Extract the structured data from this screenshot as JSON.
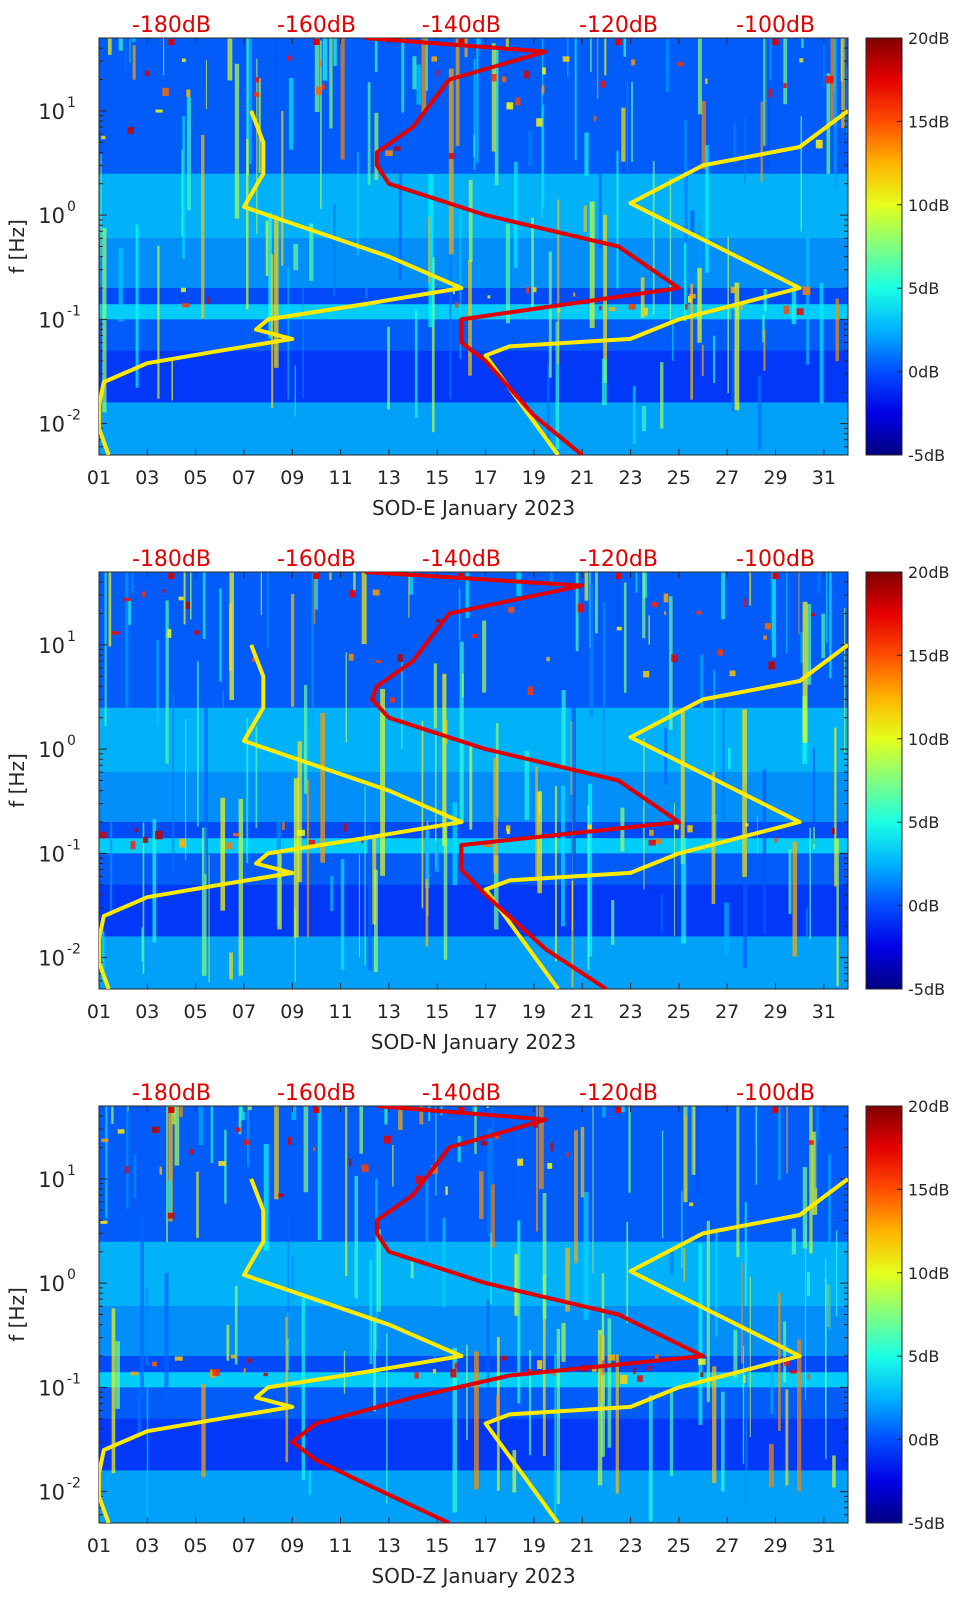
{
  "chart_data": [
    {
      "type": "heatmap",
      "title": "",
      "xlabel": "SOD-E January 2023",
      "ylabel": "f [Hz]",
      "x_ticks": [
        "01",
        "03",
        "05",
        "07",
        "09",
        "11",
        "13",
        "15",
        "17",
        "19",
        "21",
        "23",
        "25",
        "27",
        "29",
        "31"
      ],
      "xlim": [
        1,
        32
      ],
      "ylim": [
        0.005,
        50
      ],
      "y_scale": "log",
      "y_ticks": [
        {
          "value": 0.01,
          "base": "10",
          "exp": "-2"
        },
        {
          "value": 0.1,
          "base": "10",
          "exp": "-1"
        },
        {
          "value": 1,
          "base": "10",
          "exp": "0"
        },
        {
          "value": 10,
          "base": "10",
          "exp": "1"
        }
      ],
      "top_axis_labels": [
        "-180dB",
        "-160dB",
        "-140dB",
        "-120dB",
        "-100dB"
      ],
      "top_axis_days": [
        4,
        10,
        16,
        22.5,
        29
      ],
      "colorbar": {
        "labels": [
          "20dB",
          "15dB",
          "10dB",
          "5dB",
          "0dB",
          "-5dB"
        ],
        "values": [
          20,
          15,
          10,
          5,
          0,
          -5
        ],
        "range": [
          -5,
          20
        ]
      },
      "series": [
        {
          "name": "yellow-noise-model",
          "color": "#ffea00",
          "points": [
            [
              1.4,
              0.005
            ],
            [
              1.0,
              0.009
            ],
            [
              1.0,
              0.015
            ],
            [
              1.2,
              0.025
            ],
            [
              3,
              0.038
            ],
            [
              6,
              0.05
            ],
            [
              9,
              0.065
            ],
            [
              7.5,
              0.08
            ],
            [
              8,
              0.1
            ],
            [
              12,
              0.14
            ],
            [
              16,
              0.2
            ],
            [
              13,
              0.4
            ],
            [
              7,
              1.2
            ],
            [
              7.8,
              2.5
            ],
            [
              7.8,
              5
            ],
            [
              7.3,
              10
            ]
          ]
        },
        {
          "name": "yellow-noise-model-2",
          "color": "#ffea00",
          "points": [
            [
              20,
              0.005
            ],
            [
              17,
              0.045
            ],
            [
              18,
              0.055
            ],
            [
              23,
              0.065
            ],
            [
              25,
              0.1
            ],
            [
              30,
              0.2
            ],
            [
              23,
              1.3
            ],
            [
              26,
              3
            ],
            [
              30,
              4.5
            ],
            [
              32,
              10
            ]
          ]
        },
        {
          "name": "red-psd",
          "color": "#e00000",
          "points": [
            [
              21,
              0.005
            ],
            [
              19,
              0.012
            ],
            [
              17,
              0.04
            ],
            [
              16,
              0.06
            ],
            [
              16,
              0.1
            ],
            [
              25,
              0.2
            ],
            [
              22.5,
              0.5
            ],
            [
              17,
              1
            ],
            [
              13,
              2
            ],
            [
              12.5,
              3
            ],
            [
              12.5,
              4
            ],
            [
              14,
              7
            ],
            [
              15.5,
              20
            ],
            [
              19.5,
              37
            ],
            [
              12,
              50
            ]
          ]
        }
      ]
    },
    {
      "type": "heatmap",
      "title": "",
      "xlabel": "SOD-N January 2023",
      "ylabel": "f [Hz]",
      "x_ticks": [
        "01",
        "03",
        "05",
        "07",
        "09",
        "11",
        "13",
        "15",
        "17",
        "19",
        "21",
        "23",
        "25",
        "27",
        "29",
        "31"
      ],
      "xlim": [
        1,
        32
      ],
      "ylim": [
        0.005,
        50
      ],
      "y_scale": "log",
      "y_ticks": [
        {
          "value": 0.01,
          "base": "10",
          "exp": "-2"
        },
        {
          "value": 0.1,
          "base": "10",
          "exp": "-1"
        },
        {
          "value": 1,
          "base": "10",
          "exp": "0"
        },
        {
          "value": 10,
          "base": "10",
          "exp": "1"
        }
      ],
      "top_axis_labels": [
        "-180dB",
        "-160dB",
        "-140dB",
        "-120dB",
        "-100dB"
      ],
      "top_axis_days": [
        4,
        10,
        16,
        22.5,
        29
      ],
      "colorbar": {
        "labels": [
          "20dB",
          "15dB",
          "10dB",
          "5dB",
          "0dB",
          "-5dB"
        ],
        "values": [
          20,
          15,
          10,
          5,
          0,
          -5
        ],
        "range": [
          -5,
          20
        ]
      },
      "series": [
        {
          "name": "yellow-noise-model",
          "color": "#ffea00",
          "points": [
            [
              1.4,
              0.005
            ],
            [
              1.0,
              0.009
            ],
            [
              1.0,
              0.015
            ],
            [
              1.2,
              0.025
            ],
            [
              3,
              0.038
            ],
            [
              6,
              0.05
            ],
            [
              9,
              0.065
            ],
            [
              7.5,
              0.08
            ],
            [
              8,
              0.1
            ],
            [
              12,
              0.14
            ],
            [
              16,
              0.2
            ],
            [
              13,
              0.4
            ],
            [
              7,
              1.2
            ],
            [
              7.8,
              2.5
            ],
            [
              7.8,
              5
            ],
            [
              7.3,
              10
            ]
          ]
        },
        {
          "name": "yellow-noise-model-2",
          "color": "#ffea00",
          "points": [
            [
              20,
              0.005
            ],
            [
              17,
              0.045
            ],
            [
              18,
              0.055
            ],
            [
              23,
              0.065
            ],
            [
              25,
              0.1
            ],
            [
              30,
              0.2
            ],
            [
              23,
              1.3
            ],
            [
              26,
              3
            ],
            [
              30,
              4.5
            ],
            [
              32,
              10
            ]
          ]
        },
        {
          "name": "red-psd",
          "color": "#e00000",
          "points": [
            [
              22,
              0.005
            ],
            [
              19.5,
              0.012
            ],
            [
              17,
              0.04
            ],
            [
              16,
              0.07
            ],
            [
              16,
              0.12
            ],
            [
              25,
              0.2
            ],
            [
              22.5,
              0.5
            ],
            [
              17,
              1
            ],
            [
              13,
              2
            ],
            [
              12.3,
              3
            ],
            [
              12.5,
              4
            ],
            [
              14,
              7
            ],
            [
              15.5,
              20
            ],
            [
              21,
              37
            ],
            [
              12,
              50
            ]
          ]
        }
      ]
    },
    {
      "type": "heatmap",
      "title": "",
      "xlabel": "SOD-Z January 2023",
      "ylabel": "f [Hz]",
      "x_ticks": [
        "01",
        "03",
        "05",
        "07",
        "09",
        "11",
        "13",
        "15",
        "17",
        "19",
        "21",
        "23",
        "25",
        "27",
        "29",
        "31"
      ],
      "xlim": [
        1,
        32
      ],
      "ylim": [
        0.005,
        50
      ],
      "y_scale": "log",
      "y_ticks": [
        {
          "value": 0.01,
          "base": "10",
          "exp": "-2"
        },
        {
          "value": 0.1,
          "base": "10",
          "exp": "-1"
        },
        {
          "value": 1,
          "base": "10",
          "exp": "0"
        },
        {
          "value": 10,
          "base": "10",
          "exp": "1"
        }
      ],
      "top_axis_labels": [
        "-180dB",
        "-160dB",
        "-140dB",
        "-120dB",
        "-100dB"
      ],
      "top_axis_days": [
        4,
        10,
        16,
        22.5,
        29
      ],
      "colorbar": {
        "labels": [
          "20dB",
          "15dB",
          "10dB",
          "5dB",
          "0dB",
          "-5dB"
        ],
        "values": [
          20,
          15,
          10,
          5,
          0,
          -5
        ],
        "range": [
          -5,
          20
        ]
      },
      "series": [
        {
          "name": "yellow-noise-model",
          "color": "#ffea00",
          "points": [
            [
              1.4,
              0.005
            ],
            [
              1.0,
              0.009
            ],
            [
              1.0,
              0.015
            ],
            [
              1.2,
              0.025
            ],
            [
              3,
              0.038
            ],
            [
              6,
              0.05
            ],
            [
              9,
              0.065
            ],
            [
              7.5,
              0.08
            ],
            [
              8,
              0.1
            ],
            [
              12,
              0.14
            ],
            [
              16,
              0.2
            ],
            [
              13,
              0.4
            ],
            [
              7,
              1.2
            ],
            [
              7.8,
              2.5
            ],
            [
              7.8,
              5
            ],
            [
              7.3,
              10
            ]
          ]
        },
        {
          "name": "yellow-noise-model-2",
          "color": "#ffea00",
          "points": [
            [
              20,
              0.005
            ],
            [
              17,
              0.045
            ],
            [
              18,
              0.055
            ],
            [
              23,
              0.065
            ],
            [
              25,
              0.1
            ],
            [
              30,
              0.2
            ],
            [
              23,
              1.3
            ],
            [
              26,
              3
            ],
            [
              30,
              4.5
            ],
            [
              32,
              10
            ]
          ]
        },
        {
          "name": "red-psd",
          "color": "#e00000",
          "points": [
            [
              15.5,
              0.005
            ],
            [
              12,
              0.012
            ],
            [
              10,
              0.02
            ],
            [
              9,
              0.03
            ],
            [
              10,
              0.045
            ],
            [
              14,
              0.08
            ],
            [
              18,
              0.13
            ],
            [
              26,
              0.2
            ],
            [
              22.5,
              0.5
            ],
            [
              17,
              1
            ],
            [
              13,
              2
            ],
            [
              12.5,
              3
            ],
            [
              12.5,
              4
            ],
            [
              14,
              7
            ],
            [
              15.5,
              20
            ],
            [
              19.5,
              37
            ],
            [
              12.5,
              50
            ]
          ]
        }
      ]
    }
  ]
}
